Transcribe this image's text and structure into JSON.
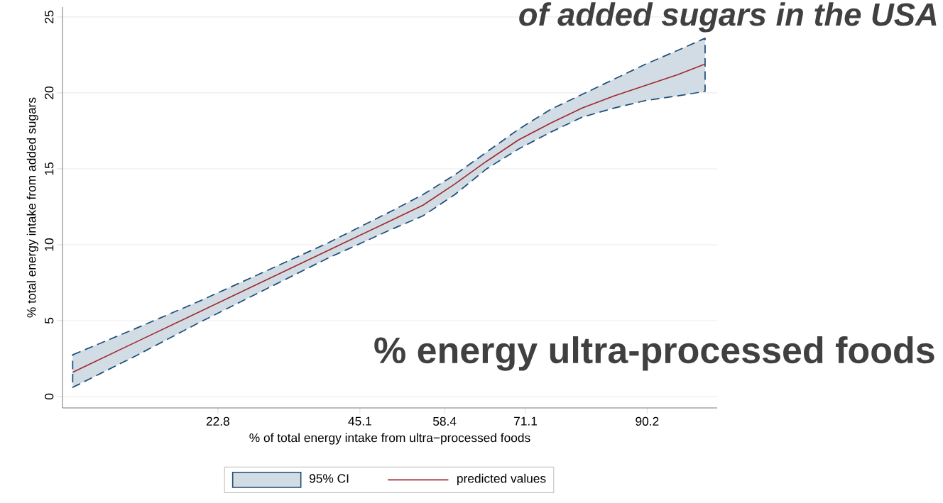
{
  "chart_data": {
    "type": "line",
    "title": "of added sugars in the USA",
    "annotations": [
      "% energy ultra-processed foods",
      "95% CI"
    ],
    "xlabel": "% of total energy intake from ultra−processed foods",
    "ylabel": "% total energy intake from added sugars",
    "x": [
      0,
      10,
      20,
      30,
      40,
      50,
      55,
      60,
      65,
      70,
      75,
      80,
      85,
      90,
      95,
      99.3
    ],
    "series": [
      {
        "name": "predicted values",
        "color": "#a0282e",
        "values": [
          1.6,
          3.6,
          5.6,
          7.6,
          9.6,
          11.6,
          12.6,
          14.0,
          15.5,
          16.9,
          18.0,
          19.0,
          19.8,
          20.5,
          21.2,
          21.9
        ],
        "lower": [
          0.6,
          2.7,
          4.9,
          7.0,
          9.1,
          11.0,
          11.9,
          13.3,
          15.0,
          16.3,
          17.4,
          18.4,
          19.0,
          19.5,
          19.8,
          20.1
        ],
        "upper": [
          2.75,
          4.5,
          6.3,
          8.2,
          10.1,
          12.2,
          13.3,
          14.6,
          16.1,
          17.6,
          18.9,
          19.9,
          20.9,
          21.9,
          22.8,
          23.6
        ]
      }
    ],
    "xlim": [
      -1.6,
      101.2
    ],
    "ylim": [
      -0.75,
      25.65
    ],
    "xticks": [
      22.8,
      45.1,
      58.4,
      71.1,
      90.2
    ],
    "yticks": [
      0,
      5,
      10,
      15,
      20,
      25
    ],
    "grid": "y",
    "legend": "bottom"
  }
}
